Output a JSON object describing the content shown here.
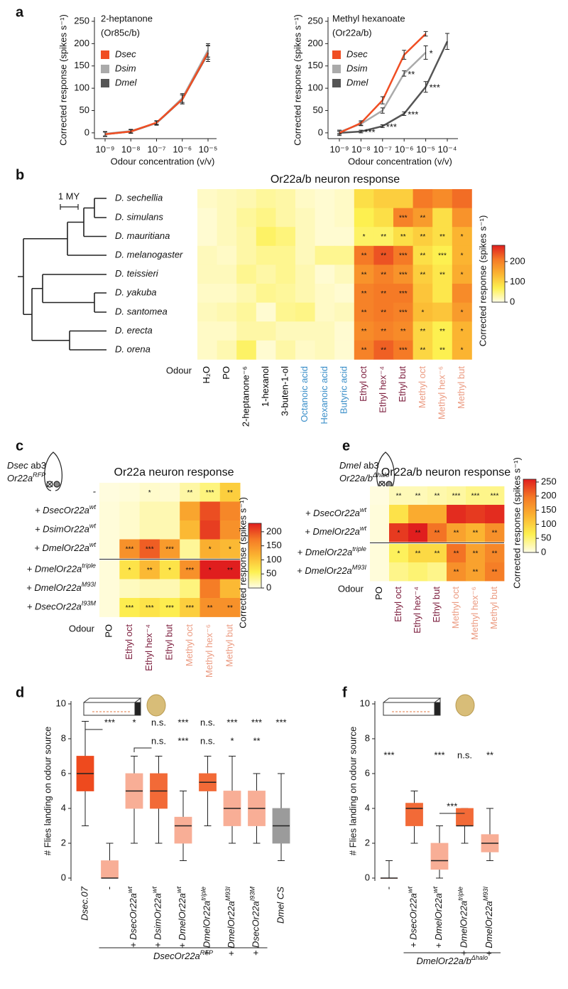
{
  "chart_data": [
    {
      "type": "line",
      "panel": "a",
      "title": "2-heptanone",
      "subtitle": "(Or85c/b)",
      "categories": [
        "10⁻⁹",
        "10⁻⁸",
        "10⁻⁷",
        "10⁻⁶",
        "10⁻⁵"
      ],
      "xlabel": "Odour concentration (v/v)",
      "ylabel": "Corrected response (spikes s⁻¹)",
      "ylim": [
        -13,
        250
      ],
      "yticks": [
        0,
        50,
        100,
        150,
        200,
        250
      ],
      "legend": "upper left",
      "series": [
        {
          "name": "Dsec",
          "color": "#f04e23",
          "values": [
            -3,
            3,
            23,
            75,
            180
          ],
          "errors": [
            5,
            4,
            4,
            10,
            15
          ]
        },
        {
          "name": "Dsim",
          "color": "#aaaaaa",
          "values": [
            -2,
            4,
            22,
            78,
            185
          ],
          "errors": [
            5,
            4,
            4,
            10,
            15
          ]
        },
        {
          "name": "Dmel",
          "color": "#555555",
          "values": [
            -3,
            3,
            22,
            75,
            178
          ],
          "errors": [
            5,
            4,
            5,
            10,
            18
          ]
        }
      ]
    },
    {
      "type": "line",
      "title": "Methyl hexanoate",
      "subtitle": "(Or22a/b)",
      "categories": [
        "10⁻⁹",
        "10⁻⁸",
        "10⁻⁷",
        "10⁻⁶",
        "10⁻⁵",
        "10⁻⁴"
      ],
      "xlabel": "Odour concentration (v/v)",
      "ylabel": "Corrected response (spikes s⁻¹)",
      "ylim": [
        -13,
        250
      ],
      "yticks": [
        0,
        50,
        100,
        150,
        200,
        250
      ],
      "legend": "upper left",
      "series": [
        {
          "name": "Dsec",
          "color": "#f04e23",
          "values": [
            0,
            22,
            73,
            175,
            222,
            null
          ],
          "errors": [
            6,
            5,
            8,
            10,
            5,
            null
          ]
        },
        {
          "name": "Dsim",
          "color": "#aaaaaa",
          "values": [
            2,
            20,
            50,
            133,
            180,
            null
          ],
          "errors": [
            4,
            4,
            6,
            6,
            15,
            null
          ],
          "significance": [
            null,
            null,
            null,
            "**",
            "*",
            null
          ]
        },
        {
          "name": "Dmel",
          "color": "#555555",
          "values": [
            0,
            3,
            15,
            43,
            103,
            205
          ],
          "errors": [
            3,
            3,
            3,
            4,
            12,
            18
          ],
          "significance": [
            null,
            "***",
            "***",
            "***",
            "***",
            null
          ]
        }
      ]
    },
    {
      "type": "heatmap",
      "panel": "b",
      "title": "Or22a/b neuron response",
      "scale_bar": "1 MY",
      "rows": [
        "D. sechellia",
        "D. simulans",
        "D. mauritiana",
        "D. melanogaster",
        "D. teissieri",
        "D. yakuba",
        "D. santomea",
        "D. erecta",
        "D. orena"
      ],
      "columns": [
        "H₂O",
        "PO",
        "2-heptanone⁻⁶",
        "1-hexanol",
        "3-buten-1-ol",
        "Octanoic acid",
        "Hexanoic acid",
        "Butyric acid",
        "Ethyl oct",
        "Ethyl hex⁻⁴",
        "Ethyl but",
        "Methyl oct",
        "Methyl hex⁻⁶",
        "Methyl but"
      ],
      "column_colors": [
        "#000000",
        "#000000",
        "#000000",
        "#000000",
        "#000000",
        "#3b8fc9",
        "#3b8fc9",
        "#3b8fc9",
        "#7b1c3c",
        "#7b1c3c",
        "#7b1c3c",
        "#eb9a80",
        "#eb9a80",
        "#eb9a80"
      ],
      "xlabel": "Odour",
      "values": [
        [
          15,
          20,
          25,
          35,
          30,
          15,
          10,
          15,
          90,
          110,
          110,
          210,
          190,
          220
        ],
        [
          10,
          20,
          35,
          45,
          30,
          20,
          10,
          15,
          70,
          90,
          200,
          170,
          90,
          180
        ],
        [
          10,
          20,
          30,
          60,
          50,
          20,
          10,
          10,
          60,
          60,
          90,
          110,
          90,
          140
        ],
        [
          20,
          15,
          30,
          40,
          40,
          20,
          40,
          40,
          210,
          240,
          210,
          90,
          70,
          140
        ],
        [
          20,
          20,
          40,
          30,
          40,
          25,
          10,
          20,
          180,
          200,
          180,
          110,
          80,
          150
        ],
        [
          15,
          15,
          25,
          40,
          35,
          25,
          15,
          10,
          200,
          210,
          210,
          120,
          80,
          190
        ],
        [
          20,
          25,
          35,
          10,
          40,
          45,
          15,
          20,
          200,
          210,
          200,
          130,
          120,
          170
        ],
        [
          15,
          15,
          30,
          30,
          20,
          20,
          20,
          10,
          190,
          200,
          190,
          100,
          70,
          140
        ],
        [
          15,
          25,
          60,
          10,
          30,
          15,
          20,
          10,
          200,
          230,
          210,
          100,
          70,
          140
        ]
      ],
      "significance": [
        [
          null,
          null,
          null,
          null,
          null,
          null,
          null,
          null,
          null,
          null,
          null,
          null,
          null,
          null
        ],
        [
          null,
          null,
          null,
          null,
          null,
          null,
          null,
          null,
          null,
          null,
          "***",
          "**",
          null,
          null
        ],
        [
          null,
          null,
          null,
          null,
          null,
          null,
          null,
          null,
          "*",
          "**",
          "**",
          "**",
          "**",
          "*"
        ],
        [
          null,
          null,
          null,
          null,
          null,
          null,
          null,
          null,
          "**",
          "**",
          "***",
          "**",
          "***",
          "*"
        ],
        [
          null,
          null,
          null,
          null,
          null,
          null,
          null,
          null,
          "**",
          "**",
          "***",
          "**",
          "**",
          "*"
        ],
        [
          null,
          null,
          null,
          null,
          null,
          null,
          null,
          null,
          "**",
          "**",
          "***",
          null,
          null,
          null
        ],
        [
          null,
          null,
          null,
          null,
          null,
          null,
          null,
          null,
          "**",
          "**",
          "***",
          "*",
          null,
          "*"
        ],
        [
          null,
          null,
          null,
          null,
          null,
          null,
          null,
          null,
          "**",
          "**",
          "**",
          "**",
          "**",
          "*"
        ],
        [
          null,
          null,
          null,
          null,
          null,
          null,
          null,
          null,
          "**",
          "**",
          "***",
          "**",
          "**",
          "*"
        ]
      ],
      "zlim": [
        0,
        280
      ],
      "zticks": [
        0,
        100,
        200
      ],
      "colorbar_label": "Corrected response (spikes s⁻¹)",
      "colormap": [
        "#fffde6",
        "#fdf050",
        "#fbb431",
        "#f57a26",
        "#e01e1e"
      ]
    },
    {
      "type": "heatmap",
      "panel": "c",
      "title": "Or22a neuron response",
      "genotype": {
        "species": "Dsec",
        "sensillum": "ab3",
        "allele": {
          "base": "Or22a",
          "sup": "RFP"
        }
      },
      "rows": [
        "-",
        {
          "base": "+ DsecOr22a",
          "sup": "wt"
        },
        {
          "base": "+ DsimOr22a",
          "sup": "wt"
        },
        {
          "base": "+ DmelOr22a",
          "sup": "wt"
        },
        {
          "base": "+ DmelOr22a",
          "sup": "triple"
        },
        {
          "base": "+ DmelOr22a",
          "sup": "M93I"
        },
        {
          "base": "+ DsecOr22a",
          "sup": "I93M"
        }
      ],
      "columns": [
        "PO",
        "Ethyl oct",
        "Ethyl hex⁻⁴",
        "Ethyl but",
        "Methyl oct",
        "Methyl hex⁻⁶",
        "Methyl but"
      ],
      "column_colors": [
        "#000000",
        "#7b1c3c",
        "#7b1c3c",
        "#7b1c3c",
        "#eb9a80",
        "#eb9a80",
        "#eb9a80"
      ],
      "xlabel": "Odour",
      "values": [
        [
          3,
          5,
          10,
          8,
          25,
          40,
          90
        ],
        [
          5,
          10,
          20,
          20,
          130,
          200,
          160
        ],
        [
          5,
          10,
          20,
          20,
          110,
          210,
          150
        ],
        [
          5,
          150,
          190,
          140,
          30,
          120,
          110
        ],
        [
          5,
          70,
          110,
          70,
          150,
          230,
          230
        ],
        [
          5,
          15,
          20,
          20,
          40,
          170,
          110
        ],
        [
          5,
          60,
          70,
          60,
          90,
          150,
          150
        ]
      ],
      "significance": [
        [
          null,
          null,
          "*",
          null,
          "**",
          "***",
          "**"
        ],
        [
          null,
          null,
          null,
          null,
          null,
          null,
          null
        ],
        [
          null,
          null,
          null,
          null,
          null,
          null,
          null
        ],
        [
          null,
          "***",
          "***",
          "***",
          null,
          "*",
          "*"
        ],
        [
          null,
          "*",
          "**",
          "*",
          "***",
          "*",
          "**"
        ],
        [
          null,
          null,
          null,
          null,
          null,
          null,
          null
        ],
        [
          null,
          "***",
          "***",
          "***",
          "***",
          "**",
          "**"
        ]
      ],
      "zlim": [
        0,
        230
      ],
      "zticks": [
        0,
        50,
        100,
        150,
        200
      ],
      "colorbar_label": "Corrected response (spikes s⁻¹)",
      "colormap": [
        "#fffde6",
        "#fdf050",
        "#fbb431",
        "#f57a26",
        "#e01e1e"
      ]
    },
    {
      "type": "heatmap",
      "panel": "e",
      "title": "Or22a/b neuron response",
      "genotype": {
        "species": "Dmel",
        "sensillum": "ab3",
        "allele": {
          "base": "Or22a/b",
          "sup": "Δhalo"
        }
      },
      "rows": [
        null,
        {
          "base": "+ DsecOr22a",
          "sup": "wt"
        },
        {
          "base": "+ DmelOr22a",
          "sup": "wt"
        },
        {
          "base": "+ DmelOr22a",
          "sup": "triple"
        },
        {
          "base": "+ DmelOr22a",
          "sup": "M93I"
        }
      ],
      "columns": [
        "PO",
        "Ethyl oct",
        "Ethyl hex⁻⁴",
        "Ethyl but",
        "Methyl oct",
        "Methyl hex⁻⁶",
        "Methyl but"
      ],
      "column_colors": [
        "#000000",
        "#7b1c3c",
        "#7b1c3c",
        "#7b1c3c",
        "#eb9a80",
        "#eb9a80",
        "#eb9a80"
      ],
      "xlabel": "Odour",
      "values": [
        [
          3,
          20,
          20,
          25,
          30,
          40,
          40
        ],
        [
          5,
          80,
          140,
          140,
          250,
          240,
          250
        ],
        [
          5,
          240,
          260,
          200,
          150,
          130,
          170
        ],
        [
          5,
          60,
          90,
          90,
          200,
          150,
          180
        ],
        [
          5,
          40,
          50,
          40,
          170,
          150,
          190
        ]
      ],
      "significance": [
        [
          null,
          "**",
          "**",
          "**",
          "***",
          "***",
          "***"
        ],
        [
          null,
          null,
          null,
          null,
          null,
          null,
          null
        ],
        [
          null,
          "*",
          "**",
          "**",
          "**",
          "**",
          "**"
        ],
        [
          null,
          "*",
          "**",
          "**",
          "**",
          "**",
          "**"
        ],
        [
          null,
          null,
          null,
          null,
          "**",
          "**",
          "**"
        ]
      ],
      "zlim": [
        0,
        260
      ],
      "zticks": [
        0,
        50,
        100,
        150,
        200,
        250
      ],
      "colorbar_label": "Corrected response (spikes s⁻¹)",
      "colormap": [
        "#fffde6",
        "#fdf050",
        "#fbb431",
        "#f57a26",
        "#e01e1e"
      ]
    },
    {
      "type": "box",
      "panel": "d",
      "ylabel": "# Flies landing on odour source",
      "ylim": [
        0,
        10
      ],
      "yticks": [
        0,
        2,
        4,
        6,
        8,
        10
      ],
      "categories": [
        "Dsec.07",
        "-",
        {
          "base": "+ DsecOr22a",
          "sup": "wt"
        },
        {
          "base": "+ DsimOr22a",
          "sup": "wt"
        },
        {
          "base": "+ DmelOr22a",
          "sup": "wt"
        },
        {
          "base": "+ DmelOr22a",
          "sup": "triple"
        },
        {
          "base": "+ DmelOr22a",
          "sup": "M93I"
        },
        {
          "base": "+ DsecOr22a",
          "sup": "I93M"
        },
        "Dmel CS"
      ],
      "group_label": {
        "base": "DsecOr22a",
        "sup": "RFP"
      },
      "boxes": [
        {
          "min": 3,
          "q1": 5,
          "median": 6,
          "q3": 7,
          "max": 9,
          "color": "#ee4a1e"
        },
        {
          "min": 0,
          "q1": 0,
          "median": 0,
          "q3": 1,
          "max": 2,
          "color": "#f8ae96"
        },
        {
          "min": 2,
          "q1": 4,
          "median": 5,
          "q3": 6,
          "max": 7,
          "color": "#f8ae96"
        },
        {
          "min": 2,
          "q1": 4,
          "median": 5,
          "q3": 6,
          "max": 7,
          "color": "#f26a37"
        },
        {
          "min": 1,
          "q1": 2,
          "median": 3,
          "q3": 3.5,
          "max": 5,
          "color": "#f8ae96"
        },
        {
          "min": 3,
          "q1": 5,
          "median": 5.5,
          "q3": 6,
          "max": 7,
          "color": "#f26a37"
        },
        {
          "min": 2,
          "q1": 3,
          "median": 4,
          "q3": 5,
          "max": 7,
          "color": "#f8ae96"
        },
        {
          "min": 2,
          "q1": 3,
          "median": 4,
          "q3": 5,
          "max": 6,
          "color": "#f8ae96"
        },
        {
          "min": 1,
          "q1": 2,
          "median": 3,
          "q3": 4,
          "max": 6,
          "color": "#9b9b9b"
        }
      ],
      "significance": [
        null,
        "***",
        "*",
        "n.s.",
        "***",
        "n.s.",
        "***",
        "***",
        "***"
      ],
      "significance_2": [
        null,
        null,
        null,
        "n.s.",
        "***",
        "n.s.",
        "*",
        "**",
        null
      ]
    },
    {
      "type": "box",
      "panel": "f",
      "ylabel": "# Flies landing on odour source",
      "ylim": [
        0,
        10
      ],
      "yticks": [
        0,
        2,
        4,
        6,
        8,
        10
      ],
      "categories": [
        "-",
        {
          "base": "+ DsecOr22a",
          "sup": "wt"
        },
        {
          "base": "+ DmelOr22a",
          "sup": "wt"
        },
        {
          "base": "+ DmelOr22a",
          "sup": "triple"
        },
        {
          "base": "+ DmelOr22a",
          "sup": "M93I"
        }
      ],
      "group_label": {
        "base": "DmelOr22a/b",
        "sup": "Δhalo"
      },
      "boxes": [
        {
          "min": 0,
          "q1": 0,
          "median": 0,
          "q3": 0,
          "max": 1,
          "color": "#f8ae96"
        },
        {
          "min": 2,
          "q1": 3,
          "median": 4,
          "q3": 4.3,
          "max": 5,
          "color": "#f26a37"
        },
        {
          "min": 0,
          "q1": 0.5,
          "median": 1,
          "q3": 2,
          "max": 3,
          "color": "#f8ae96"
        },
        {
          "min": 2,
          "q1": 3,
          "median": 3,
          "q3": 4,
          "max": 4,
          "color": "#f26a37"
        },
        {
          "min": 1,
          "q1": 1.5,
          "median": 2,
          "q3": 2.5,
          "max": 4,
          "color": "#f8ae96"
        }
      ],
      "significance": [
        "***",
        null,
        "***",
        "n.s.",
        "**"
      ],
      "pair_significance": "***"
    }
  ]
}
